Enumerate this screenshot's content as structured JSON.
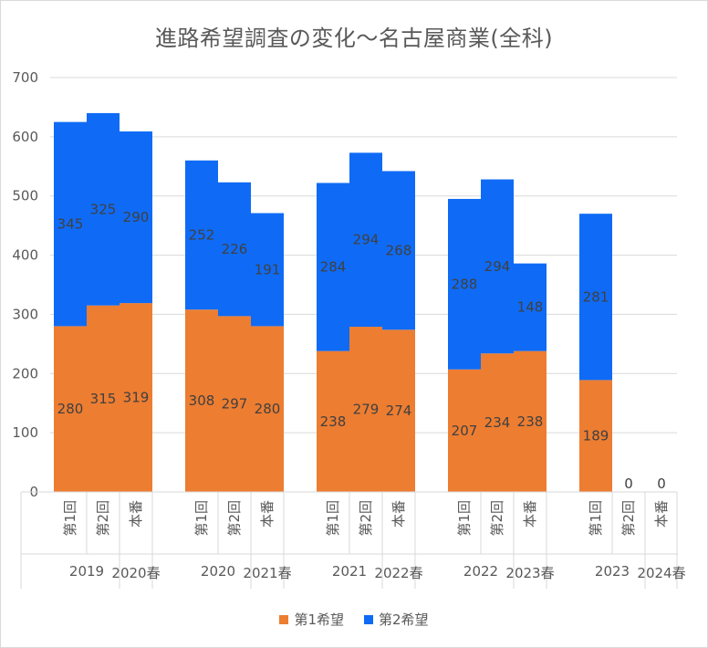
{
  "chart_data": {
    "type": "bar",
    "stacked": true,
    "title": "進路希望調査の変化～名古屋商業(全科)",
    "xlabel": "",
    "ylabel": "",
    "ylim": [
      0,
      700
    ],
    "yticks": [
      0,
      100,
      200,
      300,
      400,
      500,
      600,
      700
    ],
    "grid": true,
    "legend_position": "bottom",
    "groups": [
      {
        "year_label": "2019",
        "spring_label": "2020春",
        "categories": [
          "第1回",
          "第2回",
          "本番"
        ]
      },
      {
        "year_label": "2020",
        "spring_label": "2021春",
        "categories": [
          "第1回",
          "第2回",
          "本番"
        ]
      },
      {
        "year_label": "2021",
        "spring_label": "2022春",
        "categories": [
          "第1回",
          "第2回",
          "本番"
        ]
      },
      {
        "year_label": "2022",
        "spring_label": "2023春",
        "categories": [
          "第1回",
          "第2回",
          "本番"
        ]
      },
      {
        "year_label": "2023",
        "spring_label": "2024春",
        "categories": [
          "第1回",
          "第2回",
          "本番"
        ]
      }
    ],
    "series": [
      {
        "name": "第1希望",
        "color": "#ED7D31",
        "values": [
          280,
          315,
          319,
          308,
          297,
          280,
          238,
          279,
          274,
          207,
          234,
          238,
          189,
          0,
          0
        ],
        "labels": [
          "280",
          "315",
          "319",
          "308",
          "297",
          "280",
          "238",
          "279",
          "274",
          "207",
          "234",
          "238",
          "189",
          "0",
          "0"
        ]
      },
      {
        "name": "第2希望",
        "color": "#0F6BF5",
        "values": [
          345,
          325,
          290,
          252,
          226,
          191,
          284,
          294,
          268,
          288,
          294,
          148,
          281,
          null,
          null
        ],
        "labels": [
          "345",
          "325",
          "290",
          "252",
          "226",
          "191",
          "284",
          "294",
          "268",
          "288",
          "294",
          "148",
          "281",
          "",
          ""
        ]
      }
    ]
  }
}
